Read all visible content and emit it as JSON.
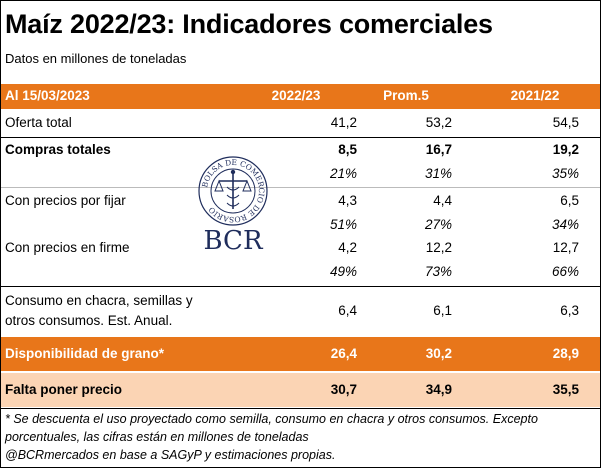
{
  "title": "Maíz 2022/23: Indicadores comerciales",
  "subtitle": "Datos en millones de toneladas",
  "header": {
    "date": "Al 15/03/2023",
    "col1": "2022/23",
    "col2": "Prom.5",
    "col3": "2021/22"
  },
  "rows": {
    "oferta": {
      "label": "Oferta total",
      "v1": "41,2",
      "v2": "53,2",
      "v3": "54,5"
    },
    "compras": {
      "label": "Compras totales",
      "v1": "8,5",
      "v2": "16,7",
      "v3": "19,2"
    },
    "compras_pct": {
      "v1": "21%",
      "v2": "31%",
      "v3": "35%"
    },
    "fijar": {
      "label": "Con precios por fijar",
      "v1": "4,3",
      "v2": "4,4",
      "v3": "6,5"
    },
    "fijar_pct": {
      "v1": "51%",
      "v2": "27%",
      "v3": "34%"
    },
    "firme": {
      "label": "Con precios en firme",
      "v1": "4,2",
      "v2": "12,2",
      "v3": "12,7"
    },
    "firme_pct": {
      "v1": "49%",
      "v2": "73%",
      "v3": "66%"
    },
    "consumo": {
      "label_line1": "Consumo en chacra, semillas y",
      "label_line2": "otros consumos. Est. Anual.",
      "v1": "6,4",
      "v2": "6,1",
      "v3": "6,3"
    },
    "disponibilidad": {
      "label": "Disponibilidad de grano*",
      "v1": "26,4",
      "v2": "30,2",
      "v3": "28,9"
    },
    "falta": {
      "label": "Falta poner precio",
      "v1": "30,7",
      "v2": "34,9",
      "v3": "35,5"
    }
  },
  "footnote": {
    "line1": "* Se descuenta el uso proyectado como semilla, consumo en chacra y otros consumos. Excepto",
    "line2": "porcentuales, las cifras están en millones de toneladas",
    "line3": "@BCRmercados en base a SAGyP y estimaciones propias."
  },
  "logo": {
    "ring_text": "BOLSA DE COMERCIO DE ROSARIO",
    "text": "BCR",
    "color": "#1f2d5c"
  }
}
